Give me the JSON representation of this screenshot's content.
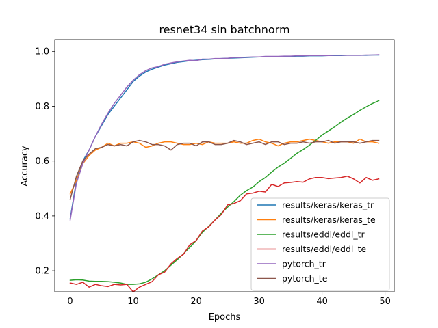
{
  "chart_data": {
    "type": "line",
    "title": "resnet34 sin batchnorm",
    "xlabel": "Epochs",
    "ylabel": "Accuracy",
    "xlim": [
      -2.45,
      51.45
    ],
    "ylim": [
      0.123,
      1.043
    ],
    "xticks": [
      "0",
      "10",
      "20",
      "30",
      "40",
      "50"
    ],
    "yticks": [
      "0.2",
      "0.4",
      "0.6",
      "0.8",
      "1.0"
    ],
    "legend_position": "lower-right",
    "x": [
      0,
      1,
      2,
      3,
      4,
      5,
      6,
      7,
      8,
      9,
      10,
      11,
      12,
      13,
      14,
      15,
      16,
      17,
      18,
      19,
      20,
      21,
      22,
      23,
      24,
      25,
      26,
      27,
      28,
      29,
      30,
      31,
      32,
      33,
      34,
      35,
      36,
      37,
      38,
      39,
      40,
      41,
      42,
      43,
      44,
      45,
      46,
      47,
      48,
      49
    ],
    "series": [
      {
        "name": "results/keras/keras_tr",
        "color": "#1f77b4",
        "values": [
          0.39,
          0.53,
          0.6,
          0.64,
          0.69,
          0.73,
          0.77,
          0.8,
          0.83,
          0.86,
          0.89,
          0.91,
          0.925,
          0.935,
          0.943,
          0.95,
          0.955,
          0.96,
          0.963,
          0.966,
          0.968,
          0.97,
          0.971,
          0.973,
          0.974,
          0.975,
          0.976,
          0.977,
          0.978,
          0.979,
          0.98,
          0.98,
          0.981,
          0.981,
          0.982,
          0.982,
          0.983,
          0.983,
          0.984,
          0.984,
          0.984,
          0.985,
          0.985,
          0.985,
          0.986,
          0.986,
          0.986,
          0.986,
          0.987,
          0.987
        ]
      },
      {
        "name": "results/keras/keras_te",
        "color": "#ff7f0e",
        "values": [
          0.48,
          0.53,
          0.59,
          0.62,
          0.64,
          0.65,
          0.665,
          0.655,
          0.665,
          0.665,
          0.67,
          0.665,
          0.65,
          0.655,
          0.665,
          0.67,
          0.67,
          0.665,
          0.66,
          0.66,
          0.665,
          0.66,
          0.67,
          0.665,
          0.665,
          0.665,
          0.67,
          0.665,
          0.665,
          0.675,
          0.68,
          0.67,
          0.665,
          0.655,
          0.665,
          0.67,
          0.67,
          0.675,
          0.68,
          0.675,
          0.67,
          0.665,
          0.67,
          0.67,
          0.67,
          0.665,
          0.68,
          0.67,
          0.67,
          0.665
        ]
      },
      {
        "name": "results/eddl/eddl_tr",
        "color": "#2ca02c",
        "values": [
          0.165,
          0.167,
          0.166,
          0.162,
          0.161,
          0.161,
          0.16,
          0.158,
          0.155,
          0.15,
          0.15,
          0.152,
          0.158,
          0.17,
          0.185,
          0.2,
          0.22,
          0.24,
          0.262,
          0.285,
          0.31,
          0.34,
          0.362,
          0.385,
          0.41,
          0.432,
          0.452,
          0.475,
          0.492,
          0.505,
          0.525,
          0.54,
          0.56,
          0.578,
          0.592,
          0.61,
          0.628,
          0.642,
          0.658,
          0.676,
          0.695,
          0.71,
          0.725,
          0.742,
          0.757,
          0.77,
          0.785,
          0.798,
          0.81,
          0.82
        ]
      },
      {
        "name": "results/eddl/eddl_te",
        "color": "#d62728",
        "values": [
          0.155,
          0.15,
          0.158,
          0.14,
          0.15,
          0.145,
          0.142,
          0.15,
          0.148,
          0.15,
          0.123,
          0.14,
          0.15,
          0.16,
          0.185,
          0.195,
          0.225,
          0.245,
          0.26,
          0.295,
          0.31,
          0.345,
          0.36,
          0.385,
          0.405,
          0.44,
          0.445,
          0.455,
          0.48,
          0.483,
          0.49,
          0.487,
          0.515,
          0.507,
          0.52,
          0.522,
          0.525,
          0.523,
          0.535,
          0.54,
          0.54,
          0.536,
          0.538,
          0.54,
          0.545,
          0.535,
          0.52,
          0.54,
          0.53,
          0.535
        ]
      },
      {
        "name": "pytorch_tr",
        "color": "#9467bd",
        "values": [
          0.385,
          0.52,
          0.59,
          0.64,
          0.69,
          0.735,
          0.775,
          0.81,
          0.84,
          0.87,
          0.895,
          0.915,
          0.93,
          0.94,
          0.945,
          0.953,
          0.958,
          0.962,
          0.965,
          0.968,
          0.966,
          0.972,
          0.972,
          0.974,
          0.974,
          0.975,
          0.978,
          0.978,
          0.979,
          0.98,
          0.98,
          0.982,
          0.982,
          0.982,
          0.983,
          0.983,
          0.984,
          0.984,
          0.985,
          0.985,
          0.985,
          0.985,
          0.986,
          0.986,
          0.986,
          0.986,
          0.986,
          0.987,
          0.987,
          0.988
        ]
      },
      {
        "name": "pytorch_te",
        "color": "#8c564b",
        "values": [
          0.46,
          0.545,
          0.6,
          0.625,
          0.645,
          0.65,
          0.66,
          0.655,
          0.66,
          0.655,
          0.67,
          0.675,
          0.67,
          0.66,
          0.66,
          0.655,
          0.64,
          0.66,
          0.665,
          0.665,
          0.655,
          0.67,
          0.67,
          0.66,
          0.66,
          0.665,
          0.675,
          0.67,
          0.66,
          0.665,
          0.67,
          0.66,
          0.67,
          0.67,
          0.66,
          0.665,
          0.665,
          0.67,
          0.665,
          0.67,
          0.67,
          0.675,
          0.665,
          0.67,
          0.67,
          0.67,
          0.665,
          0.67,
          0.675,
          0.675
        ]
      }
    ]
  }
}
